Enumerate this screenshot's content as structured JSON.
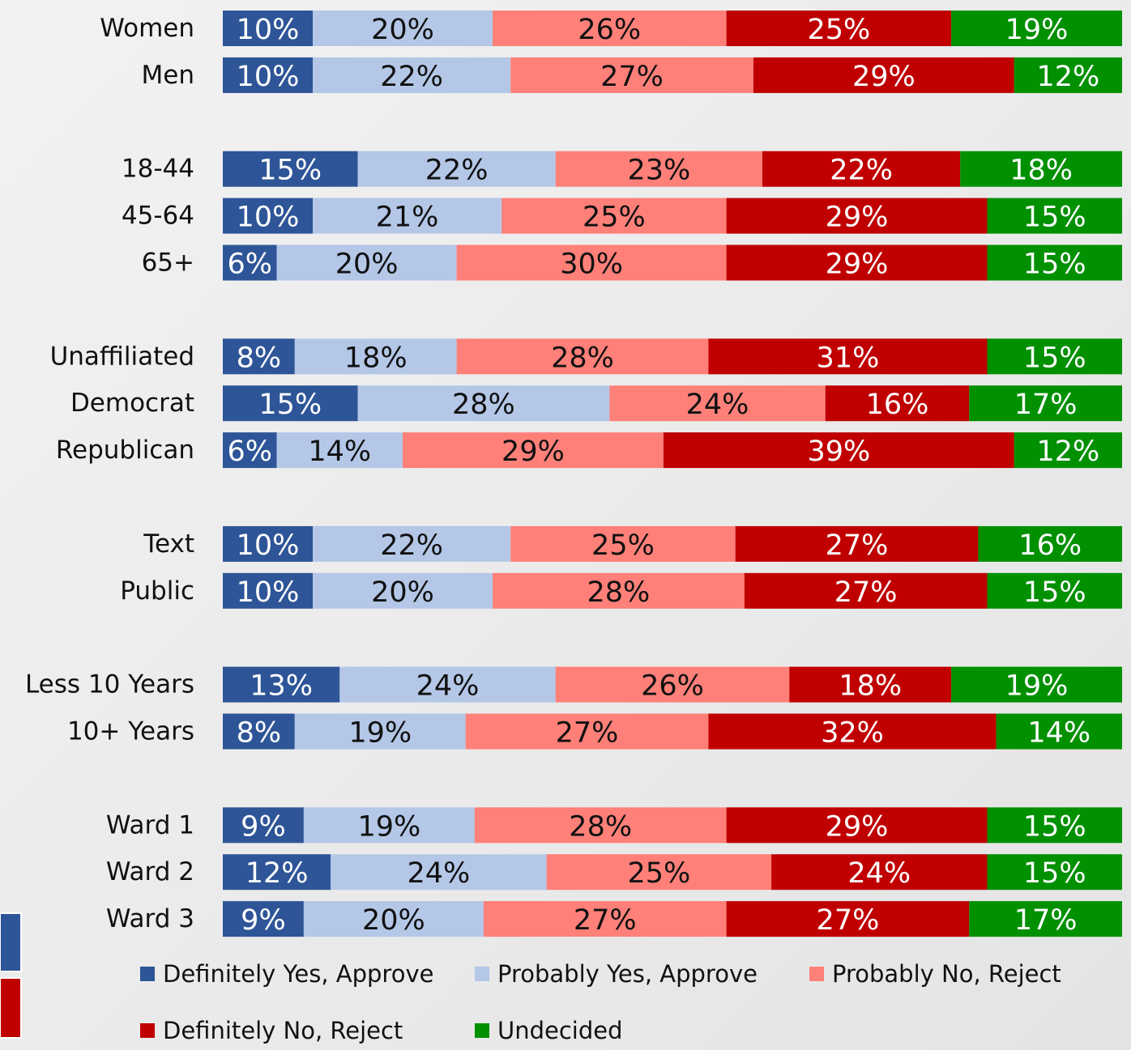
{
  "chart_data": {
    "type": "stacked-bar-horizontal",
    "categories": [
      "Women",
      "Men",
      null,
      "18-44",
      "45-64",
      "65+",
      null,
      "Unaffiliated",
      "Democrat",
      "Republican",
      null,
      "Text",
      "Public",
      null,
      "Less 10 Years",
      "10+ Years",
      null,
      "Ward 1",
      "Ward 2",
      "Ward 3"
    ],
    "xlim": [
      0,
      100
    ],
    "legend": "bottom",
    "series": [
      {
        "name": "Definitely Yes, Approve",
        "color": "#2e5597",
        "values": [
          10,
          10,
          null,
          15,
          10,
          6,
          null,
          8,
          15,
          6,
          null,
          10,
          10,
          null,
          13,
          8,
          null,
          9,
          12,
          9
        ],
        "value_labels": [
          "10%",
          "10%",
          null,
          "15%",
          "10%",
          "6%",
          null,
          "8%",
          "15%",
          "6%",
          null,
          "10%",
          "10%",
          null,
          "13%",
          "8%",
          null,
          "9%",
          "12%",
          "9%"
        ]
      },
      {
        "name": "Probably Yes, Approve",
        "color": "#b4c7e7",
        "values": [
          20,
          22,
          null,
          22,
          21,
          20,
          null,
          18,
          28,
          14,
          null,
          22,
          20,
          null,
          24,
          19,
          null,
          19,
          24,
          20
        ],
        "value_labels": [
          "20%",
          "22%",
          null,
          "22%",
          "21%",
          "20%",
          null,
          "18%",
          "28%",
          "14%",
          null,
          "22%",
          "20%",
          null,
          "24%",
          "19%",
          null,
          "19%",
          "24%",
          "20%"
        ]
      },
      {
        "name": "Probably No, Reject",
        "color": "#ff8079",
        "values": [
          26,
          27,
          null,
          23,
          25,
          30,
          null,
          28,
          24,
          29,
          null,
          25,
          28,
          null,
          26,
          27,
          null,
          28,
          25,
          27
        ],
        "value_labels": [
          "26%",
          "27%",
          null,
          "23%",
          "25%",
          "30%",
          null,
          "28%",
          "24%",
          "29%",
          null,
          "25%",
          "28%",
          null,
          "26%",
          "27%",
          null,
          "28%",
          "25%",
          "27%"
        ]
      },
      {
        "name": "Definitely No, Reject",
        "color": "#c00000",
        "values": [
          25,
          29,
          null,
          22,
          29,
          29,
          null,
          31,
          16,
          39,
          null,
          27,
          27,
          null,
          18,
          32,
          null,
          29,
          24,
          27
        ],
        "value_labels": [
          "25%",
          "29%",
          null,
          "22%",
          "29%",
          "29%",
          null,
          "31%",
          "16%",
          "39%",
          null,
          "27%",
          "27%",
          null,
          "18%",
          "32%",
          null,
          "29%",
          "24%",
          "27%"
        ]
      },
      {
        "name": "Undecided",
        "color": "#009000",
        "values": [
          19,
          12,
          null,
          18,
          15,
          15,
          null,
          15,
          17,
          12,
          null,
          16,
          15,
          null,
          19,
          14,
          null,
          15,
          15,
          17
        ],
        "value_labels": [
          "19%",
          "12%",
          null,
          "18%",
          "15%",
          "15%",
          null,
          "15%",
          "17%",
          "12%",
          null,
          "16%",
          "15%",
          null,
          "19%",
          "14%",
          null,
          "15%",
          "15%",
          "17%"
        ]
      }
    ]
  }
}
